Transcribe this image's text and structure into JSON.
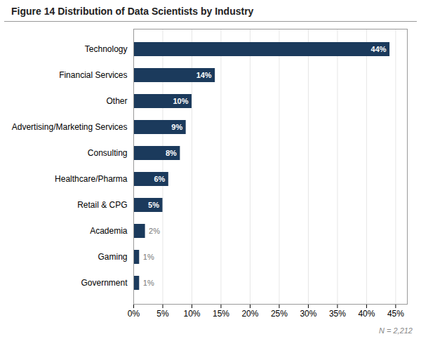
{
  "chart_data": {
    "type": "bar",
    "orientation": "horizontal",
    "title": "Figure 14 Distribution of Data Scientists by Industry",
    "categories": [
      "Technology",
      "Financial Services",
      "Other",
      "Advertising/Marketing Services",
      "Consulting",
      "Healthcare/Pharma",
      "Retail & CPG",
      "Academia",
      "Gaming",
      "Government"
    ],
    "values": [
      44,
      14,
      10,
      9,
      8,
      6,
      5,
      2,
      1,
      1
    ],
    "value_labels": [
      "44%",
      "14%",
      "10%",
      "9%",
      "8%",
      "6%",
      "5%",
      "2%",
      "1%",
      "1%"
    ],
    "data_labels": true,
    "color": "#1b3a5c",
    "xlim": [
      0,
      47
    ],
    "xticks": [
      {
        "value": 0,
        "label": "0%"
      },
      {
        "value": 5,
        "label": "5%"
      },
      {
        "value": 10,
        "label": "10%"
      },
      {
        "value": 15,
        "label": "15%"
      },
      {
        "value": 20,
        "label": "20%"
      },
      {
        "value": 25,
        "label": "25%"
      },
      {
        "value": 30,
        "label": "30%"
      },
      {
        "value": 35,
        "label": "35%"
      },
      {
        "value": 40,
        "label": "40%"
      },
      {
        "value": 45,
        "label": "45%"
      }
    ],
    "grid": true,
    "annotations": [
      "N = 2,212"
    ]
  }
}
